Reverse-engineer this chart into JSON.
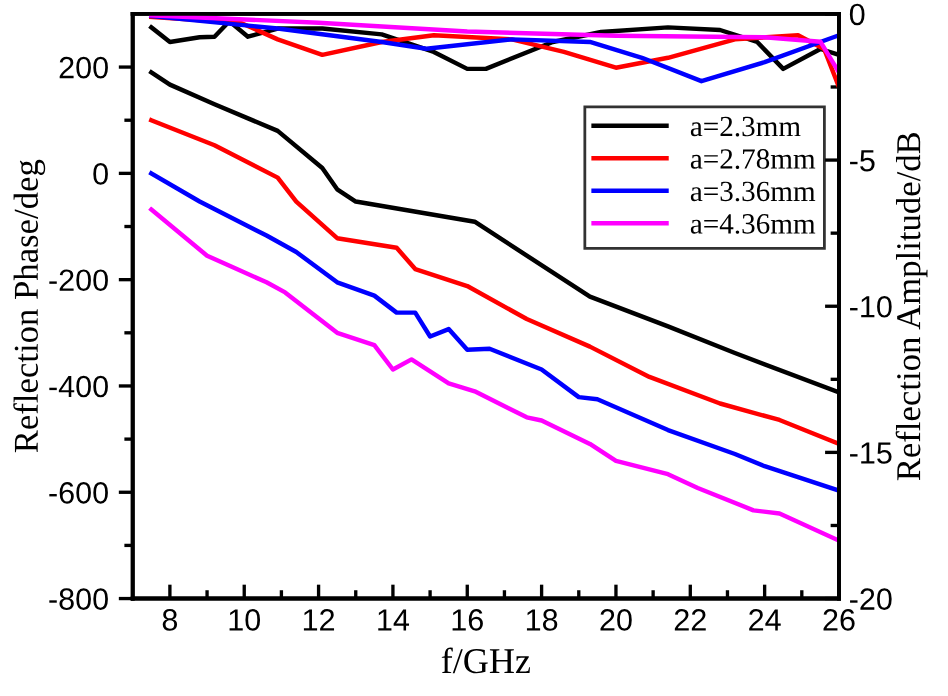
{
  "chart_data": {
    "type": "line",
    "xlabel": "f/GHz",
    "ylabel": "Reflection Phase/deg",
    "y2label": "Reflection Amplitude/dB",
    "xlim": [
      7,
      26
    ],
    "xticks": [
      8,
      {
        "value": 9,
        "label": null
      },
      10,
      {
        "value": 11,
        "label": null
      },
      12,
      {
        "value": 13,
        "label": null
      },
      14,
      {
        "value": 15,
        "label": null
      },
      16,
      {
        "value": 17,
        "label": null
      },
      18,
      {
        "value": 19,
        "label": null
      },
      20,
      {
        "value": 21,
        "label": null
      },
      22,
      {
        "value": 23,
        "label": null
      },
      24,
      {
        "value": 25,
        "label": null
      },
      26
    ],
    "ylim": [
      -800,
      300
    ],
    "yticks": [
      -800,
      {
        "value": -700,
        "label": null
      },
      -600,
      {
        "value": -500,
        "label": null
      },
      -400,
      {
        "value": -300,
        "label": null
      },
      -200,
      {
        "value": -100,
        "label": null
      },
      0,
      {
        "value": 100,
        "label": null
      },
      200
    ],
    "y2lim": [
      -20,
      0
    ],
    "y2ticks": [
      -20,
      {
        "value": -17.5,
        "label": null
      },
      -15,
      {
        "value": -12.5,
        "label": null
      },
      -10,
      {
        "value": -7.5,
        "label": null
      },
      -5,
      {
        "value": -2.5,
        "label": null
      },
      0
    ],
    "legend": "center right",
    "grid": false,
    "marker": "none",
    "line_style": "solid",
    "series": [
      {
        "name": "a=2.3mm",
        "color": "#000000",
        "x": [
          7.5,
          8,
          9.2,
          10.9,
          12.1,
          12.5,
          13,
          16.2,
          19.3,
          21.4,
          23.2,
          26
        ],
        "values": [
          190,
          167,
          130,
          80,
          10,
          -30,
          -53,
          -91,
          -232,
          -288,
          -338,
          -412
        ]
      },
      {
        "name": "a=2.78mm",
        "color": "#ff0000",
        "x": [
          7.5,
          9.2,
          10.9,
          11.4,
          12.5,
          14.1,
          14.6,
          16,
          17.6,
          19.3,
          20.9,
          22.8,
          24.4,
          26
        ],
        "values": [
          100,
          53,
          -8,
          -53,
          -122,
          -140,
          -180,
          -212,
          -274,
          -326,
          -383,
          -433,
          -464,
          -509
        ]
      },
      {
        "name": "a=3.36mm",
        "color": "#0000ff",
        "x": [
          7.5,
          8.8,
          10.6,
          11.4,
          12.5,
          13.5,
          14.1,
          14.6,
          15,
          15.5,
          16,
          16.6,
          18,
          19,
          19.5,
          21.4,
          23.2,
          24,
          26
        ],
        "values": [
          0,
          -53,
          -117,
          -148,
          -205,
          -230,
          -262,
          -262,
          -307,
          -293,
          -332,
          -330,
          -369,
          -421,
          -425,
          -483,
          -528,
          -551,
          -597
        ]
      },
      {
        "name": "a=4.36mm",
        "color": "#ff00ff",
        "x": [
          7.5,
          9,
          9.8,
          10.6,
          11.1,
          12.5,
          13.5,
          14,
          14.5,
          15.5,
          16.2,
          17.6,
          18,
          19.3,
          20,
          21.4,
          22.2,
          23.7,
          24.4,
          26
        ],
        "values": [
          -68,
          -155,
          -180,
          -205,
          -224,
          -300,
          -323,
          -369,
          -350,
          -395,
          -410,
          -459,
          -465,
          -509,
          -541,
          -566,
          -592,
          -634,
          -640,
          -691
        ]
      },
      {
        "axis": "y2",
        "color": "#000000",
        "x": [
          7.5,
          8,
          8.8,
          9.2,
          9.6,
          10.1,
          10.9,
          12.1,
          13.7,
          15.1,
          16,
          16.5,
          18.3,
          19.6,
          21.4,
          22.8,
          23.8,
          24.5,
          25.5,
          26
        ],
        "values": [
          -0.46,
          -0.96,
          -0.8,
          -0.78,
          -0.25,
          -0.78,
          -0.5,
          -0.5,
          -0.7,
          -1.3,
          -1.88,
          -1.88,
          -0.96,
          -0.62,
          -0.46,
          -0.55,
          -0.96,
          -1.88,
          -1.2,
          -1.4
        ]
      },
      {
        "axis": "y2",
        "color": "#ff0000",
        "x": [
          7.5,
          9.9,
          10.9,
          12.1,
          13.7,
          15.1,
          17.2,
          18.6,
          20,
          21.4,
          23.2,
          24.9,
          25.6,
          26
        ],
        "values": [
          -0.1,
          -0.3,
          -0.87,
          -1.4,
          -0.96,
          -0.73,
          -0.87,
          -1.3,
          -1.84,
          -1.5,
          -0.87,
          -0.73,
          -1.2,
          -2.5
        ]
      },
      {
        "axis": "y2",
        "color": "#0000ff",
        "x": [
          7.5,
          10.9,
          13.7,
          14.9,
          17.2,
          19.3,
          20.7,
          22.3,
          24,
          26
        ],
        "values": [
          -0.07,
          -0.5,
          -0.96,
          -1.19,
          -0.87,
          -0.96,
          -1.5,
          -2.3,
          -1.65,
          -0.73
        ]
      },
      {
        "axis": "y2",
        "color": "#ff00ff",
        "x": [
          7.5,
          12,
          16,
          20,
          24,
          25.5,
          26
        ],
        "values": [
          -0.05,
          -0.3,
          -0.6,
          -0.75,
          -0.8,
          -0.95,
          -2.0
        ]
      }
    ]
  }
}
